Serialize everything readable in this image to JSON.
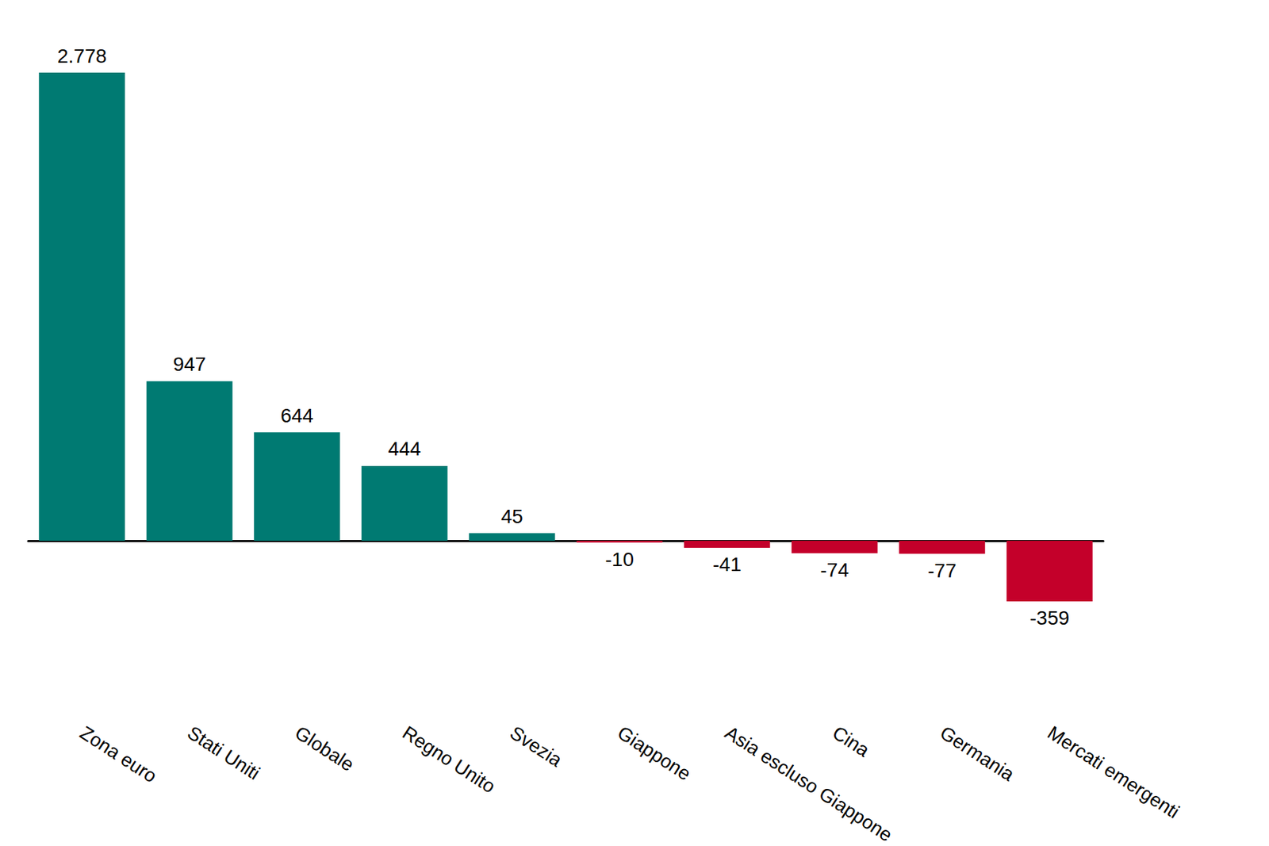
{
  "chart_data": {
    "type": "bar",
    "categories": [
      "Zona euro",
      "Stati Uniti",
      "Globale",
      "Regno Unito",
      "Svezia",
      "Giappone",
      "Asia escluso Giappone",
      "Cina",
      "Germania",
      "Mercati emergenti"
    ],
    "values": [
      2778,
      947,
      644,
      444,
      45,
      -10,
      -41,
      -74,
      -77,
      -359
    ],
    "value_labels": [
      "2.778",
      "947",
      "644",
      "444",
      "45",
      "-10",
      "-41",
      "-74",
      "-77",
      "-359"
    ],
    "colors": [
      "#007A72",
      "#007A72",
      "#007A72",
      "#007A72",
      "#007A72",
      "#C4002A",
      "#C4002A",
      "#C4002A",
      "#C4002A",
      "#C4002A"
    ],
    "data_labels": true,
    "tick_labels": false,
    "grid": false
  }
}
